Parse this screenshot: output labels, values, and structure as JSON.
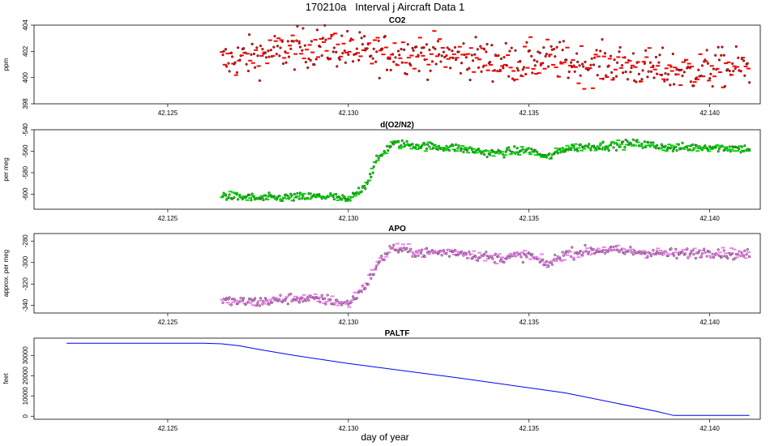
{
  "figure": {
    "title": "170210a   Interval j Aircraft Data 1",
    "xlabel": "day of year"
  },
  "colors": {
    "co2": "#ff0000",
    "o2n2": "#00dd00",
    "apo": "#ee82ee",
    "paltf": "#0000ff",
    "point_edge": "#000000"
  },
  "chart_data": [
    {
      "type": "scatter",
      "title": "CO2",
      "ylabel": "ppm",
      "x_ticks": [
        42.125,
        42.13,
        42.135,
        42.14
      ],
      "x_tick_labels": [
        "42.125",
        "42.130",
        "42.135",
        "42.140"
      ],
      "xlim": [
        42.1213,
        42.1414
      ],
      "y_ticks": [
        398,
        400,
        402,
        404
      ],
      "y_tick_labels": [
        "398",
        "400",
        "402",
        "404"
      ],
      "ylim": [
        398,
        404
      ],
      "series": [
        {
          "x": [
            42.1265,
            42.1275,
            42.1285,
            42.1295,
            42.1305,
            42.1315,
            42.1325,
            42.1335,
            42.1345,
            42.1355,
            42.1365,
            42.1375,
            42.1385,
            42.1395,
            42.1405,
            42.1411
          ],
          "values": [
            401.2,
            401.7,
            402.2,
            402.4,
            401.8,
            401.9,
            401.7,
            401.5,
            401.1,
            401.4,
            401.0,
            401.0,
            400.6,
            400.5,
            400.8,
            400.7
          ]
        }
      ]
    },
    {
      "type": "scatter",
      "title": "d(O2/N2)",
      "ylabel": "per meg",
      "x_ticks": [
        42.125,
        42.13,
        42.135,
        42.14
      ],
      "x_tick_labels": [
        "42.125",
        "42.130",
        "42.135",
        "42.140"
      ],
      "xlim": [
        42.1213,
        42.1414
      ],
      "y_ticks": [
        -600,
        -580,
        -560,
        -540
      ],
      "y_tick_labels": [
        "-600",
        "-580",
        "-560",
        "-540"
      ],
      "ylim": [
        -614,
        -540
      ],
      "series": [
        {
          "x": [
            42.1265,
            42.1275,
            42.1285,
            42.1295,
            42.13,
            42.1302,
            42.1305,
            42.1308,
            42.1312,
            42.132,
            42.133,
            42.134,
            42.135,
            42.1355,
            42.136,
            42.137,
            42.138,
            42.139,
            42.14,
            42.1411
          ],
          "values": [
            -601,
            -604,
            -603,
            -602,
            -606,
            -600,
            -590,
            -568,
            -553,
            -555,
            -557,
            -562,
            -559,
            -566,
            -557,
            -555,
            -553,
            -557,
            -556,
            -558
          ]
        }
      ]
    },
    {
      "type": "scatter",
      "title": "APO",
      "ylabel": "approx. per meg",
      "x_ticks": [
        42.125,
        42.13,
        42.135,
        42.14
      ],
      "x_tick_labels": [
        "42.125",
        "42.130",
        "42.135",
        "42.140"
      ],
      "xlim": [
        42.1213,
        42.1414
      ],
      "y_ticks": [
        -340,
        -320,
        -300,
        -280
      ],
      "y_tick_labels": [
        "-340",
        "-320",
        "-300",
        "-280"
      ],
      "ylim": [
        -347,
        -273
      ],
      "series": [
        {
          "x": [
            42.1265,
            42.1275,
            42.1285,
            42.1295,
            42.13,
            42.1302,
            42.1305,
            42.1308,
            42.1312,
            42.132,
            42.133,
            42.134,
            42.135,
            42.1355,
            42.136,
            42.137,
            42.138,
            42.139,
            42.14,
            42.1411
          ],
          "values": [
            -336,
            -337,
            -333,
            -335,
            -339,
            -331,
            -320,
            -302,
            -286,
            -291,
            -290,
            -296,
            -293,
            -302,
            -292,
            -288,
            -290,
            -292,
            -290,
            -293
          ]
        }
      ]
    },
    {
      "type": "line",
      "title": "PALTF",
      "ylabel": "feet",
      "x_ticks": [
        42.125,
        42.13,
        42.135,
        42.14
      ],
      "x_tick_labels": [
        "42.125",
        "42.130",
        "42.135",
        "42.140"
      ],
      "xlim": [
        42.1213,
        42.1414
      ],
      "y_ticks": [
        0,
        10000,
        20000,
        30000
      ],
      "y_tick_labels": [
        "0",
        "10000",
        "20000",
        "30000"
      ],
      "ylim": [
        -1500,
        38500
      ],
      "series": [
        {
          "x": [
            42.1222,
            42.125,
            42.126,
            42.1265,
            42.127,
            42.1275,
            42.1285,
            42.13,
            42.133,
            42.136,
            42.1385,
            42.139,
            42.1411
          ],
          "values": [
            36000,
            36000,
            36000,
            35700,
            34700,
            33000,
            30000,
            26000,
            19000,
            11500,
            2500,
            400,
            400
          ]
        }
      ]
    }
  ]
}
